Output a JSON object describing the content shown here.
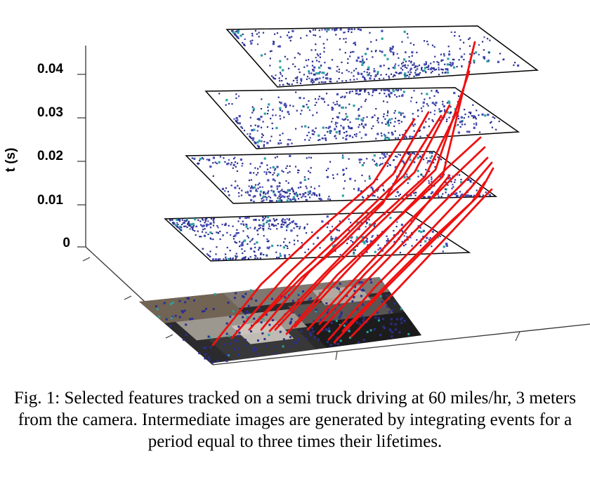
{
  "figure": {
    "axis": {
      "label": "t (s)",
      "ticks": [
        "0",
        "0.01",
        "0.02",
        "0.03",
        "0.04"
      ]
    },
    "slices_count": 4,
    "colors": {
      "event_dot": "#2b2f8f",
      "event_dot_light": "#4a4fb8",
      "event_dot_teal": "#2aa3a0",
      "track": "#ee1111",
      "frame": "#000000"
    },
    "base_image": "grayscale camera frame of a semi truck",
    "icons": [
      "feature-track-line",
      "event-slice-plane",
      "camera-frame-image"
    ]
  },
  "caption": {
    "text": "Fig. 1: Selected features tracked on a semi truck driving at 60 miles/hr, 3 meters from the camera. Intermediate images are generated by integrating events for a period equal to three times their lifetimes."
  }
}
